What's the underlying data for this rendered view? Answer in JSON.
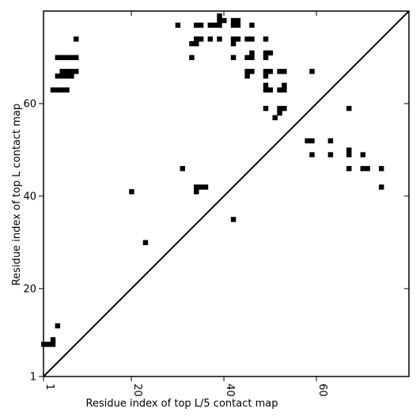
{
  "chart_data": {
    "type": "scatter",
    "title": "",
    "xlabel": "Residue index of top L/5 contact map",
    "ylabel": "Residue index of top L contact map",
    "xlim": [
      1,
      80
    ],
    "ylim": [
      1,
      80
    ],
    "x_ticks": [
      1,
      20,
      40,
      60
    ],
    "y_ticks": [
      1,
      20,
      40,
      60
    ],
    "x_tick_labels": [
      "1",
      "20",
      "40",
      "60"
    ],
    "y_tick_labels": [
      "1",
      "20",
      "40",
      "60"
    ],
    "marker": "square",
    "marker_color": "#000000",
    "diagonal": true,
    "grid": false,
    "points": [
      [
        1,
        8
      ],
      [
        2,
        8
      ],
      [
        3,
        8
      ],
      [
        3,
        9
      ],
      [
        4,
        12
      ],
      [
        20,
        41
      ],
      [
        23,
        30
      ],
      [
        31,
        46
      ],
      [
        42,
        35
      ],
      [
        3,
        63
      ],
      [
        4,
        63
      ],
      [
        5,
        63
      ],
      [
        6,
        63
      ],
      [
        4,
        66
      ],
      [
        5,
        66
      ],
      [
        6,
        66
      ],
      [
        7,
        66
      ],
      [
        5,
        67
      ],
      [
        6,
        67
      ],
      [
        7,
        67
      ],
      [
        8,
        67
      ],
      [
        4,
        70
      ],
      [
        5,
        70
      ],
      [
        6,
        70
      ],
      [
        7,
        70
      ],
      [
        8,
        70
      ],
      [
        8,
        74
      ],
      [
        30,
        77
      ],
      [
        33,
        70
      ],
      [
        33,
        73
      ],
      [
        34,
        73
      ],
      [
        34,
        74
      ],
      [
        35,
        74
      ],
      [
        34,
        77
      ],
      [
        35,
        77
      ],
      [
        37,
        74
      ],
      [
        37,
        77
      ],
      [
        38,
        77
      ],
      [
        39,
        77
      ],
      [
        39,
        78
      ],
      [
        39,
        79
      ],
      [
        40,
        78
      ],
      [
        39,
        74
      ],
      [
        42,
        73
      ],
      [
        42,
        74
      ],
      [
        43,
        74
      ],
      [
        42,
        77
      ],
      [
        43,
        77
      ],
      [
        42,
        78
      ],
      [
        43,
        78
      ],
      [
        42,
        70
      ],
      [
        45,
        66
      ],
      [
        45,
        67
      ],
      [
        46,
        67
      ],
      [
        45,
        70
      ],
      [
        46,
        70
      ],
      [
        46,
        71
      ],
      [
        45,
        74
      ],
      [
        46,
        74
      ],
      [
        46,
        77
      ],
      [
        49,
        59
      ],
      [
        49,
        63
      ],
      [
        50,
        63
      ],
      [
        49,
        64
      ],
      [
        49,
        66
      ],
      [
        49,
        67
      ],
      [
        50,
        67
      ],
      [
        49,
        70
      ],
      [
        50,
        71
      ],
      [
        49,
        71
      ],
      [
        49,
        74
      ],
      [
        51,
        57
      ],
      [
        52,
        58
      ],
      [
        52,
        59
      ],
      [
        53,
        59
      ],
      [
        52,
        63
      ],
      [
        53,
        63
      ],
      [
        53,
        64
      ],
      [
        52,
        67
      ],
      [
        53,
        67
      ],
      [
        34,
        41
      ],
      [
        34,
        42
      ],
      [
        35,
        42
      ],
      [
        36,
        42
      ],
      [
        58,
        52
      ],
      [
        59,
        52
      ],
      [
        59,
        49
      ],
      [
        59,
        67
      ],
      [
        63,
        49
      ],
      [
        63,
        52
      ],
      [
        67,
        46
      ],
      [
        67,
        49
      ],
      [
        67,
        50
      ],
      [
        67,
        59
      ],
      [
        70,
        46
      ],
      [
        71,
        46
      ],
      [
        70,
        49
      ],
      [
        74,
        46
      ],
      [
        74,
        42
      ]
    ]
  }
}
